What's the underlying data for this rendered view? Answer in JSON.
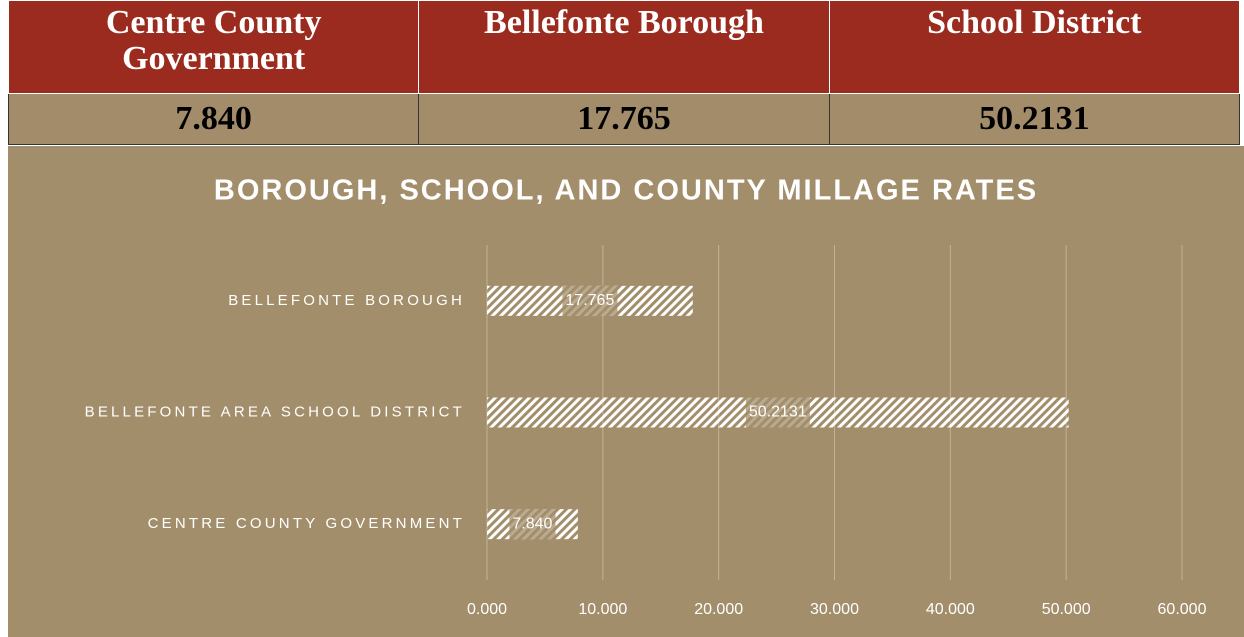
{
  "table": {
    "header": [
      "Centre County Government",
      "Bellefonte Borough",
      "School District"
    ],
    "rows": [
      [
        "7.840",
        "17.765",
        "50.2131"
      ]
    ]
  },
  "chart_data": {
    "type": "bar",
    "orientation": "horizontal",
    "title": "BOROUGH, SCHOOL, AND COUNTY MILLAGE RATES",
    "categories": [
      "BELLEFONTE BOROUGH",
      "BELLEFONTE AREA SCHOOL DISTRICT",
      "CENTRE COUNTY GOVERNMENT"
    ],
    "values": [
      17.765,
      50.2131,
      7.84
    ],
    "value_labels": [
      "17.765",
      "50.2131",
      "7.840"
    ],
    "color": "#ffffff",
    "background": "#a38e6b",
    "xlim": [
      0,
      60
    ],
    "xticks": [
      {
        "value": 0,
        "label": "0.000"
      },
      {
        "value": 10,
        "label": "10.000"
      },
      {
        "value": 20,
        "label": "20.000"
      },
      {
        "value": 30,
        "label": "30.000"
      },
      {
        "value": 40,
        "label": "40.000"
      },
      {
        "value": 50,
        "label": "50.000"
      },
      {
        "value": 60,
        "label": "60.000"
      }
    ],
    "grid": true
  }
}
